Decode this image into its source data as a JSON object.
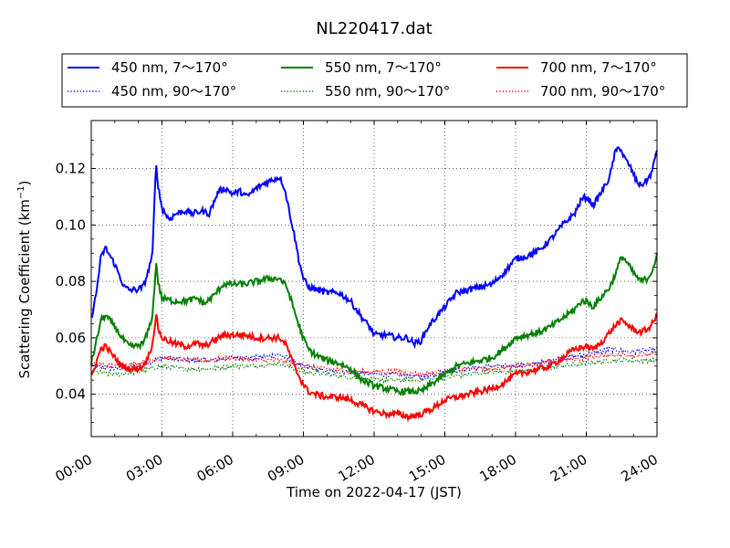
{
  "chart_data": {
    "type": "line",
    "title": "NL220417.dat",
    "xlabel": "Time on 2022-04-17 (JST)",
    "ylabel_main": "Scattering Coefficient (km",
    "ylabel_sup": "−1",
    "ylabel_tail": ")",
    "x_unit": "hours",
    "xlim": [
      0,
      24
    ],
    "ylim": [
      0.025,
      0.137
    ],
    "grid": true,
    "legend_placement": "top",
    "x_ticks": [
      {
        "value": 0,
        "label": "00:00"
      },
      {
        "value": 3,
        "label": "03:00"
      },
      {
        "value": 6,
        "label": "06:00"
      },
      {
        "value": 9,
        "label": "09:00"
      },
      {
        "value": 12,
        "label": "12:00"
      },
      {
        "value": 15,
        "label": "15:00"
      },
      {
        "value": 18,
        "label": "18:00"
      },
      {
        "value": 21,
        "label": "21:00"
      },
      {
        "value": 24,
        "label": "24:00"
      }
    ],
    "y_ticks": [
      {
        "value": 0.04,
        "label": "0.04"
      },
      {
        "value": 0.06,
        "label": "0.06"
      },
      {
        "value": 0.08,
        "label": "0.08"
      },
      {
        "value": 0.1,
        "label": "0.10"
      },
      {
        "value": 0.12,
        "label": "0.12"
      }
    ],
    "series": [
      {
        "name": "450 nm, 7～170°",
        "color": "#0000ff",
        "style": "solid",
        "points": [
          [
            0,
            0.067
          ],
          [
            0.2,
            0.075
          ],
          [
            0.4,
            0.088
          ],
          [
            0.6,
            0.092
          ],
          [
            0.8,
            0.089
          ],
          [
            1.0,
            0.086
          ],
          [
            1.2,
            0.082
          ],
          [
            1.4,
            0.078
          ],
          [
            1.6,
            0.077
          ],
          [
            1.9,
            0.077
          ],
          [
            2.2,
            0.078
          ],
          [
            2.4,
            0.083
          ],
          [
            2.6,
            0.09
          ],
          [
            2.7,
            0.112
          ],
          [
            2.75,
            0.122
          ],
          [
            2.85,
            0.113
          ],
          [
            3.0,
            0.106
          ],
          [
            3.3,
            0.102
          ],
          [
            3.6,
            0.104
          ],
          [
            4.0,
            0.105
          ],
          [
            4.3,
            0.104
          ],
          [
            4.7,
            0.105
          ],
          [
            5.0,
            0.104
          ],
          [
            5.2,
            0.108
          ],
          [
            5.4,
            0.112
          ],
          [
            5.7,
            0.113
          ],
          [
            6.0,
            0.111
          ],
          [
            6.3,
            0.112
          ],
          [
            6.6,
            0.11
          ],
          [
            7.0,
            0.113
          ],
          [
            7.4,
            0.115
          ],
          [
            7.7,
            0.116
          ],
          [
            8.0,
            0.117
          ],
          [
            8.2,
            0.113
          ],
          [
            8.4,
            0.105
          ],
          [
            8.6,
            0.097
          ],
          [
            8.8,
            0.088
          ],
          [
            9.0,
            0.081
          ],
          [
            9.2,
            0.078
          ],
          [
            9.6,
            0.077
          ],
          [
            10.0,
            0.076
          ],
          [
            10.5,
            0.076
          ],
          [
            11.0,
            0.073
          ],
          [
            11.5,
            0.067
          ],
          [
            11.8,
            0.064
          ],
          [
            12.0,
            0.061
          ],
          [
            12.5,
            0.061
          ],
          [
            13.0,
            0.06
          ],
          [
            13.4,
            0.06
          ],
          [
            13.7,
            0.058
          ],
          [
            14.0,
            0.059
          ],
          [
            14.3,
            0.064
          ],
          [
            14.6,
            0.067
          ],
          [
            15.0,
            0.071
          ],
          [
            15.5,
            0.076
          ],
          [
            16.0,
            0.077
          ],
          [
            16.5,
            0.078
          ],
          [
            17.0,
            0.079
          ],
          [
            17.5,
            0.083
          ],
          [
            18.0,
            0.088
          ],
          [
            18.5,
            0.089
          ],
          [
            19.0,
            0.091
          ],
          [
            19.5,
            0.095
          ],
          [
            20.0,
            0.1
          ],
          [
            20.5,
            0.104
          ],
          [
            20.8,
            0.109
          ],
          [
            21.0,
            0.11
          ],
          [
            21.3,
            0.107
          ],
          [
            21.6,
            0.111
          ],
          [
            22.0,
            0.117
          ],
          [
            22.2,
            0.125
          ],
          [
            22.4,
            0.128
          ],
          [
            22.6,
            0.124
          ],
          [
            22.9,
            0.12
          ],
          [
            23.1,
            0.116
          ],
          [
            23.3,
            0.114
          ],
          [
            23.6,
            0.116
          ],
          [
            23.8,
            0.119
          ],
          [
            24.0,
            0.127
          ]
        ]
      },
      {
        "name": "550 nm, 7～170°",
        "color": "#008000",
        "style": "solid",
        "points": [
          [
            0,
            0.051
          ],
          [
            0.2,
            0.058
          ],
          [
            0.4,
            0.066
          ],
          [
            0.6,
            0.068
          ],
          [
            0.8,
            0.066
          ],
          [
            1.0,
            0.064
          ],
          [
            1.3,
            0.06
          ],
          [
            1.6,
            0.057
          ],
          [
            1.9,
            0.057
          ],
          [
            2.2,
            0.058
          ],
          [
            2.4,
            0.062
          ],
          [
            2.6,
            0.068
          ],
          [
            2.7,
            0.08
          ],
          [
            2.75,
            0.087
          ],
          [
            2.85,
            0.079
          ],
          [
            3.0,
            0.074
          ],
          [
            3.5,
            0.073
          ],
          [
            4.0,
            0.073
          ],
          [
            4.5,
            0.074
          ],
          [
            4.8,
            0.072
          ],
          [
            5.2,
            0.075
          ],
          [
            5.6,
            0.079
          ],
          [
            6.0,
            0.079
          ],
          [
            6.5,
            0.079
          ],
          [
            7.0,
            0.08
          ],
          [
            7.5,
            0.081
          ],
          [
            8.0,
            0.081
          ],
          [
            8.3,
            0.078
          ],
          [
            8.6,
            0.07
          ],
          [
            8.9,
            0.062
          ],
          [
            9.2,
            0.056
          ],
          [
            9.5,
            0.054
          ],
          [
            10.0,
            0.052
          ],
          [
            10.5,
            0.051
          ],
          [
            11.0,
            0.049
          ],
          [
            11.5,
            0.045
          ],
          [
            12.0,
            0.043
          ],
          [
            12.5,
            0.042
          ],
          [
            13.0,
            0.041
          ],
          [
            13.5,
            0.041
          ],
          [
            14.0,
            0.041
          ],
          [
            14.5,
            0.044
          ],
          [
            15.0,
            0.047
          ],
          [
            15.5,
            0.05
          ],
          [
            16.0,
            0.051
          ],
          [
            16.5,
            0.052
          ],
          [
            17.0,
            0.053
          ],
          [
            17.5,
            0.056
          ],
          [
            18.0,
            0.06
          ],
          [
            18.5,
            0.061
          ],
          [
            19.0,
            0.062
          ],
          [
            19.5,
            0.064
          ],
          [
            20.0,
            0.067
          ],
          [
            20.5,
            0.07
          ],
          [
            20.8,
            0.073
          ],
          [
            21.0,
            0.073
          ],
          [
            21.3,
            0.071
          ],
          [
            21.6,
            0.074
          ],
          [
            22.0,
            0.078
          ],
          [
            22.3,
            0.084
          ],
          [
            22.5,
            0.089
          ],
          [
            22.7,
            0.087
          ],
          [
            23.0,
            0.083
          ],
          [
            23.3,
            0.08
          ],
          [
            23.6,
            0.081
          ],
          [
            23.8,
            0.084
          ],
          [
            24.0,
            0.089
          ]
        ]
      },
      {
        "name": "700 nm, 7～170°",
        "color": "#ff0000",
        "style": "solid",
        "points": [
          [
            0,
            0.046
          ],
          [
            0.2,
            0.051
          ],
          [
            0.4,
            0.056
          ],
          [
            0.6,
            0.057
          ],
          [
            0.8,
            0.055
          ],
          [
            1.0,
            0.053
          ],
          [
            1.3,
            0.05
          ],
          [
            1.6,
            0.049
          ],
          [
            1.9,
            0.049
          ],
          [
            2.2,
            0.05
          ],
          [
            2.4,
            0.053
          ],
          [
            2.6,
            0.058
          ],
          [
            2.7,
            0.065
          ],
          [
            2.75,
            0.068
          ],
          [
            2.85,
            0.063
          ],
          [
            3.0,
            0.06
          ],
          [
            3.5,
            0.058
          ],
          [
            4.0,
            0.057
          ],
          [
            4.5,
            0.058
          ],
          [
            4.8,
            0.057
          ],
          [
            5.2,
            0.059
          ],
          [
            5.6,
            0.061
          ],
          [
            6.0,
            0.061
          ],
          [
            6.5,
            0.061
          ],
          [
            7.0,
            0.06
          ],
          [
            7.5,
            0.06
          ],
          [
            8.0,
            0.06
          ],
          [
            8.3,
            0.057
          ],
          [
            8.6,
            0.05
          ],
          [
            8.9,
            0.045
          ],
          [
            9.2,
            0.041
          ],
          [
            9.5,
            0.04
          ],
          [
            10.0,
            0.039
          ],
          [
            10.5,
            0.039
          ],
          [
            11.0,
            0.038
          ],
          [
            11.5,
            0.036
          ],
          [
            12.0,
            0.034
          ],
          [
            12.5,
            0.033
          ],
          [
            13.0,
            0.033
          ],
          [
            13.5,
            0.032
          ],
          [
            14.0,
            0.033
          ],
          [
            14.5,
            0.035
          ],
          [
            15.0,
            0.038
          ],
          [
            15.5,
            0.039
          ],
          [
            16.0,
            0.04
          ],
          [
            16.5,
            0.041
          ],
          [
            17.0,
            0.042
          ],
          [
            17.5,
            0.044
          ],
          [
            18.0,
            0.047
          ],
          [
            18.5,
            0.048
          ],
          [
            19.0,
            0.049
          ],
          [
            19.5,
            0.05
          ],
          [
            20.0,
            0.053
          ],
          [
            20.5,
            0.056
          ],
          [
            21.0,
            0.057
          ],
          [
            21.3,
            0.056
          ],
          [
            21.6,
            0.058
          ],
          [
            22.0,
            0.062
          ],
          [
            22.3,
            0.065
          ],
          [
            22.5,
            0.066
          ],
          [
            22.7,
            0.065
          ],
          [
            23.0,
            0.063
          ],
          [
            23.3,
            0.062
          ],
          [
            23.6,
            0.063
          ],
          [
            23.8,
            0.065
          ],
          [
            24.0,
            0.068
          ]
        ]
      },
      {
        "name": "450 nm, 90～170°",
        "color": "#0000ff",
        "style": "dotted",
        "points": [
          [
            0,
            0.05
          ],
          [
            1.0,
            0.049
          ],
          [
            2.0,
            0.05
          ],
          [
            3.0,
            0.053
          ],
          [
            4.0,
            0.052
          ],
          [
            5.0,
            0.052
          ],
          [
            6.0,
            0.053
          ],
          [
            7.0,
            0.053
          ],
          [
            8.0,
            0.054
          ],
          [
            9.0,
            0.05
          ],
          [
            10.0,
            0.048
          ],
          [
            11.0,
            0.048
          ],
          [
            12.0,
            0.047
          ],
          [
            13.0,
            0.047
          ],
          [
            14.0,
            0.046
          ],
          [
            15.0,
            0.048
          ],
          [
            16.0,
            0.049
          ],
          [
            17.0,
            0.05
          ],
          [
            18.0,
            0.05
          ],
          [
            19.0,
            0.051
          ],
          [
            20.0,
            0.053
          ],
          [
            21.0,
            0.054
          ],
          [
            22.0,
            0.056
          ],
          [
            23.0,
            0.055
          ],
          [
            24.0,
            0.056
          ]
        ]
      },
      {
        "name": "550 nm, 90～170°",
        "color": "#008000",
        "style": "dotted",
        "points": [
          [
            0,
            0.048
          ],
          [
            1.0,
            0.047
          ],
          [
            2.0,
            0.048
          ],
          [
            3.0,
            0.05
          ],
          [
            4.0,
            0.049
          ],
          [
            5.0,
            0.049
          ],
          [
            6.0,
            0.05
          ],
          [
            7.0,
            0.05
          ],
          [
            8.0,
            0.051
          ],
          [
            9.0,
            0.048
          ],
          [
            10.0,
            0.047
          ],
          [
            11.0,
            0.046
          ],
          [
            12.0,
            0.045
          ],
          [
            13.0,
            0.045
          ],
          [
            14.0,
            0.045
          ],
          [
            15.0,
            0.046
          ],
          [
            16.0,
            0.047
          ],
          [
            17.0,
            0.048
          ],
          [
            18.0,
            0.048
          ],
          [
            19.0,
            0.049
          ],
          [
            20.0,
            0.05
          ],
          [
            21.0,
            0.051
          ],
          [
            22.0,
            0.052
          ],
          [
            23.0,
            0.052
          ],
          [
            24.0,
            0.052
          ]
        ]
      },
      {
        "name": "700 nm, 90～170°",
        "color": "#ff0000",
        "style": "dotted",
        "points": [
          [
            0,
            0.051
          ],
          [
            1.0,
            0.05
          ],
          [
            2.0,
            0.051
          ],
          [
            3.0,
            0.053
          ],
          [
            4.0,
            0.052
          ],
          [
            5.0,
            0.052
          ],
          [
            6.0,
            0.053
          ],
          [
            7.0,
            0.052
          ],
          [
            8.0,
            0.052
          ],
          [
            9.0,
            0.05
          ],
          [
            10.0,
            0.049
          ],
          [
            11.0,
            0.048
          ],
          [
            12.0,
            0.048
          ],
          [
            13.0,
            0.048
          ],
          [
            14.0,
            0.047
          ],
          [
            15.0,
            0.048
          ],
          [
            16.0,
            0.049
          ],
          [
            17.0,
            0.049
          ],
          [
            18.0,
            0.05
          ],
          [
            19.0,
            0.051
          ],
          [
            20.0,
            0.052
          ],
          [
            21.0,
            0.053
          ],
          [
            22.0,
            0.054
          ],
          [
            23.0,
            0.054
          ],
          [
            24.0,
            0.054
          ]
        ]
      }
    ]
  }
}
